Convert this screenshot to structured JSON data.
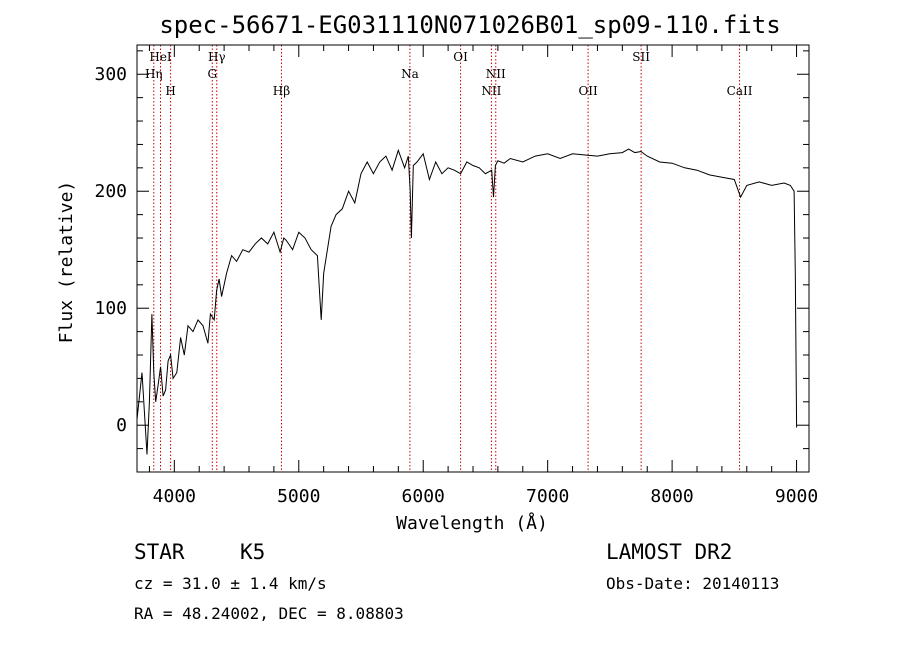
{
  "chart_data": {
    "type": "line",
    "title": "spec-56671-EG031110N071026B01_sp09-110.fits",
    "xlabel": "Wavelength (Å)",
    "ylabel": "Flux (relative)",
    "xlim": [
      3700,
      9100
    ],
    "ylim": [
      -40,
      325
    ],
    "x_ticks": [
      4000,
      5000,
      6000,
      7000,
      8000,
      9000
    ],
    "y_ticks": [
      0,
      100,
      200,
      300
    ],
    "grid": false,
    "series": [
      {
        "x": [
          3700,
          3740,
          3780,
          3800,
          3820,
          3835,
          3850,
          3870,
          3890,
          3910,
          3930,
          3950,
          3970,
          3990,
          4020,
          4050,
          4080,
          4110,
          4150,
          4190,
          4230,
          4270,
          4290,
          4320,
          4340,
          4360,
          4380,
          4420,
          4460,
          4500,
          4550,
          4600,
          4650,
          4700,
          4750,
          4800,
          4850,
          4880,
          4900,
          4950,
          5000,
          5050,
          5100,
          5150,
          5180,
          5200,
          5230,
          5260,
          5300,
          5350,
          5400,
          5450,
          5500,
          5550,
          5600,
          5650,
          5700,
          5750,
          5800,
          5850,
          5880,
          5895,
          5905,
          5920,
          5950,
          6000,
          6050,
          6100,
          6150,
          6200,
          6250,
          6300,
          6350,
          6400,
          6450,
          6500,
          6550,
          6565,
          6580,
          6600,
          6650,
          6700,
          6800,
          6900,
          7000,
          7100,
          7200,
          7300,
          7400,
          7500,
          7600,
          7650,
          7700,
          7750,
          7800,
          7900,
          8000,
          8100,
          8200,
          8300,
          8400,
          8500,
          8550,
          8600,
          8700,
          8800,
          8900,
          8950,
          8980,
          8990,
          9000
        ],
        "values": [
          5,
          45,
          -25,
          20,
          95,
          45,
          20,
          35,
          50,
          25,
          30,
          55,
          60,
          40,
          45,
          75,
          60,
          85,
          80,
          90,
          85,
          70,
          95,
          90,
          115,
          125,
          110,
          130,
          145,
          140,
          150,
          148,
          155,
          160,
          155,
          165,
          148,
          160,
          158,
          150,
          165,
          160,
          150,
          145,
          90,
          130,
          150,
          170,
          180,
          185,
          200,
          190,
          215,
          225,
          215,
          225,
          230,
          218,
          235,
          220,
          230,
          200,
          160,
          222,
          225,
          232,
          210,
          225,
          215,
          220,
          218,
          215,
          225,
          222,
          220,
          215,
          218,
          195,
          222,
          226,
          224,
          228,
          225,
          230,
          232,
          228,
          232,
          231,
          230,
          232,
          233,
          236,
          233,
          234,
          230,
          225,
          224,
          220,
          218,
          214,
          212,
          210,
          195,
          205,
          208,
          205,
          207,
          205,
          200,
          130,
          -2
        ]
      }
    ],
    "line_markers": [
      {
        "label": "HeI",
        "x": 3889,
        "row": 1
      },
      {
        "label": "Hη",
        "x": 3835,
        "row": 2
      },
      {
        "label": "H",
        "x": 3970,
        "row": 3
      },
      {
        "label": "Hγ",
        "x": 4341,
        "row": 1
      },
      {
        "label": "G",
        "x": 4305,
        "row": 2
      },
      {
        "label": "Hβ",
        "x": 4861,
        "row": 3
      },
      {
        "label": "Na",
        "x": 5893,
        "row": 2
      },
      {
        "label": "OI",
        "x": 6300,
        "row": 1
      },
      {
        "label": "NII",
        "x": 6583,
        "row": 2
      },
      {
        "label": "NII",
        "x": 6548,
        "row": 3
      },
      {
        "label": "OII",
        "x": 7325,
        "row": 3
      },
      {
        "label": "SII",
        "x": 7751,
        "row": 1
      },
      {
        "label": "CaII",
        "x": 8542,
        "row": 3
      }
    ]
  },
  "footer": {
    "object_type": "STAR",
    "subclass": "K5",
    "survey": "LAMOST DR2",
    "cz": "cz = 31.0 ± 1.4 km/s",
    "obs_date": "Obs-Date: 20140113",
    "coords": "RA =  48.24002, DEC =   8.08803"
  },
  "colors": {
    "spectrum": "#000000",
    "marker_line": "#cc0000",
    "axes": "#000000"
  }
}
